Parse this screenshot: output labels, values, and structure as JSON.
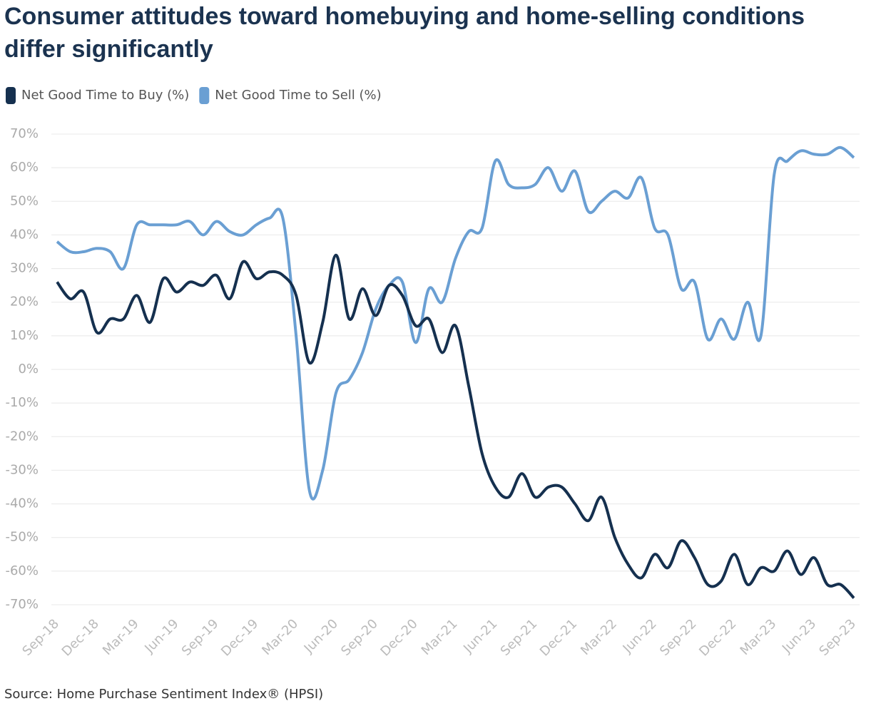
{
  "chart_data": {
    "type": "line",
    "title": "Consumer attitudes toward homebuying and home-selling conditions differ significantly",
    "source": "Source: Home Purchase Sentiment Index® (HPSI)",
    "categories": [
      "Sep-18",
      null,
      null,
      "Dec-18",
      null,
      null,
      "Mar-19",
      null,
      null,
      "Jun-19",
      null,
      null,
      "Sep-19",
      null,
      null,
      "Dec-19",
      null,
      null,
      "Mar-20",
      null,
      null,
      "Jun-20",
      null,
      null,
      "Sep-20",
      null,
      null,
      "Dec-20",
      null,
      null,
      "Mar-21",
      null,
      null,
      "Jun-21",
      null,
      null,
      "Sep-21",
      null,
      null,
      "Dec-21",
      null,
      null,
      "Mar-22",
      null,
      null,
      "Jun-22",
      null,
      null,
      "Sep-22",
      null,
      null,
      "Dec-22",
      null,
      null,
      "Mar-23",
      null,
      null,
      "Jun-23",
      null,
      null,
      "Sep-23"
    ],
    "series": [
      {
        "name": "Net Good Time to Buy (%)",
        "color": "#15304f",
        "values": [
          26,
          21,
          23,
          11,
          15,
          15,
          22,
          14,
          27,
          23,
          26,
          25,
          28,
          21,
          32,
          27,
          29,
          28,
          22,
          2,
          14,
          34,
          15,
          24,
          16,
          25,
          22,
          13,
          15,
          5,
          13,
          -5,
          -25,
          -35,
          -38,
          -31,
          -38,
          -35,
          -35,
          -40,
          -45,
          -38,
          -50,
          -58,
          -62,
          -55,
          -59,
          -51,
          -56,
          -64,
          -63,
          -55,
          -64,
          -59,
          -60,
          -54,
          -61,
          -56,
          -64,
          -64,
          -68
        ]
      },
      {
        "name": "Net Good Time to Sell (%)",
        "color": "#6a9fd3",
        "values": [
          38,
          35,
          35,
          36,
          35,
          30,
          43,
          43,
          43,
          43,
          44,
          40,
          44,
          41,
          40,
          43,
          45,
          45,
          10,
          -36,
          -30,
          -7,
          -3,
          5,
          18,
          25,
          26,
          8,
          24,
          20,
          33,
          41,
          42,
          62,
          55,
          54,
          55,
          60,
          53,
          59,
          47,
          50,
          53,
          51,
          57,
          42,
          40,
          24,
          26,
          9,
          15,
          9,
          20,
          10,
          58,
          62,
          65,
          64,
          64,
          66,
          63
        ]
      }
    ],
    "ylim": [
      -70,
      70
    ],
    "yticks": [
      {
        "value": -70,
        "label": "-70%"
      },
      {
        "value": -60,
        "label": "-60%"
      },
      {
        "value": -50,
        "label": "-50%"
      },
      {
        "value": -40,
        "label": "-40%"
      },
      {
        "value": -30,
        "label": "-30%"
      },
      {
        "value": -20,
        "label": "-20%"
      },
      {
        "value": -10,
        "label": "-10%"
      },
      {
        "value": 0,
        "label": "0%"
      },
      {
        "value": 10,
        "label": "10%"
      },
      {
        "value": 20,
        "label": "20%"
      },
      {
        "value": 30,
        "label": "30%"
      },
      {
        "value": 40,
        "label": "40%"
      },
      {
        "value": 50,
        "label": "50%"
      },
      {
        "value": 60,
        "label": "60%"
      },
      {
        "value": 70,
        "label": "70%"
      }
    ],
    "grid": true
  }
}
